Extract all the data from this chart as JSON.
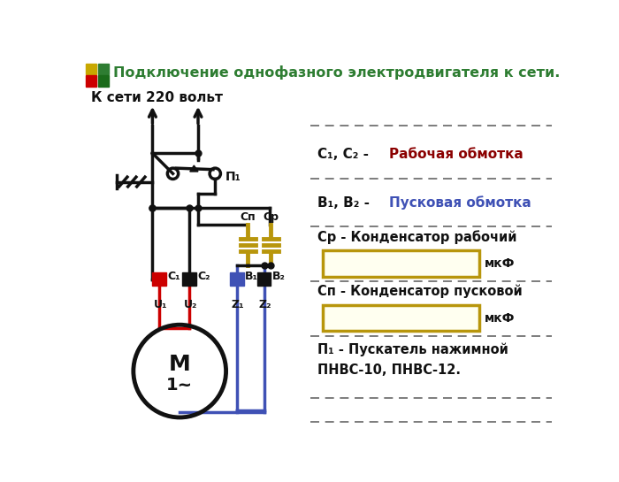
{
  "title": "Подключение однофазного электродвигателя к сети.",
  "title_color": "#2e7d32",
  "bg_color": "#ffffff",
  "left_label": "К сети 220 вольт",
  "motor_M": "М",
  "motor_1": "1~",
  "pi_label": "П₁",
  "cap_n_label": "Сп",
  "cap_p_label": "Ср",
  "term_labels": [
    "С₁",
    "С₂",
    "В₁",
    "В₂"
  ],
  "sub_labels": [
    "U₁",
    "U₂",
    "Z₁",
    "Z₂"
  ],
  "legend_c1c2_black": "С₁, С₂ - ",
  "legend_c1c2_red": "Рабочая обмотка",
  "legend_c1c2_red_color": "#8b0000",
  "legend_b1b2_black": "В₁, В₂ - ",
  "legend_b1b2_blue": "Пусковая обмотка",
  "legend_b1b2_blue_color": "#3f51b5",
  "legend_cr": "Ср - Конденсатор рабочий",
  "legend_cn": "Сп - Конденсатор пусковой",
  "legend_p1a": "П₁ - Пускатель нажимной",
  "legend_p1b": "ПНВС-10, ПНВС-12.",
  "mkf": "мкФ",
  "wire_black": "#111111",
  "wire_red": "#cc0000",
  "wire_blue": "#3f51b5",
  "cap_color": "#b8960c",
  "term_red": "#cc0000",
  "term_blue": "#3f51b5",
  "term_dark": "#111111",
  "box_edge": "#b8960c",
  "box_face": "#fffff0",
  "dash_color": "#666666",
  "icon_yellow": "#c8a800",
  "icon_red": "#cc0000",
  "icon_green": "#2e7d32",
  "icon_dark_green": "#1a6b1a"
}
